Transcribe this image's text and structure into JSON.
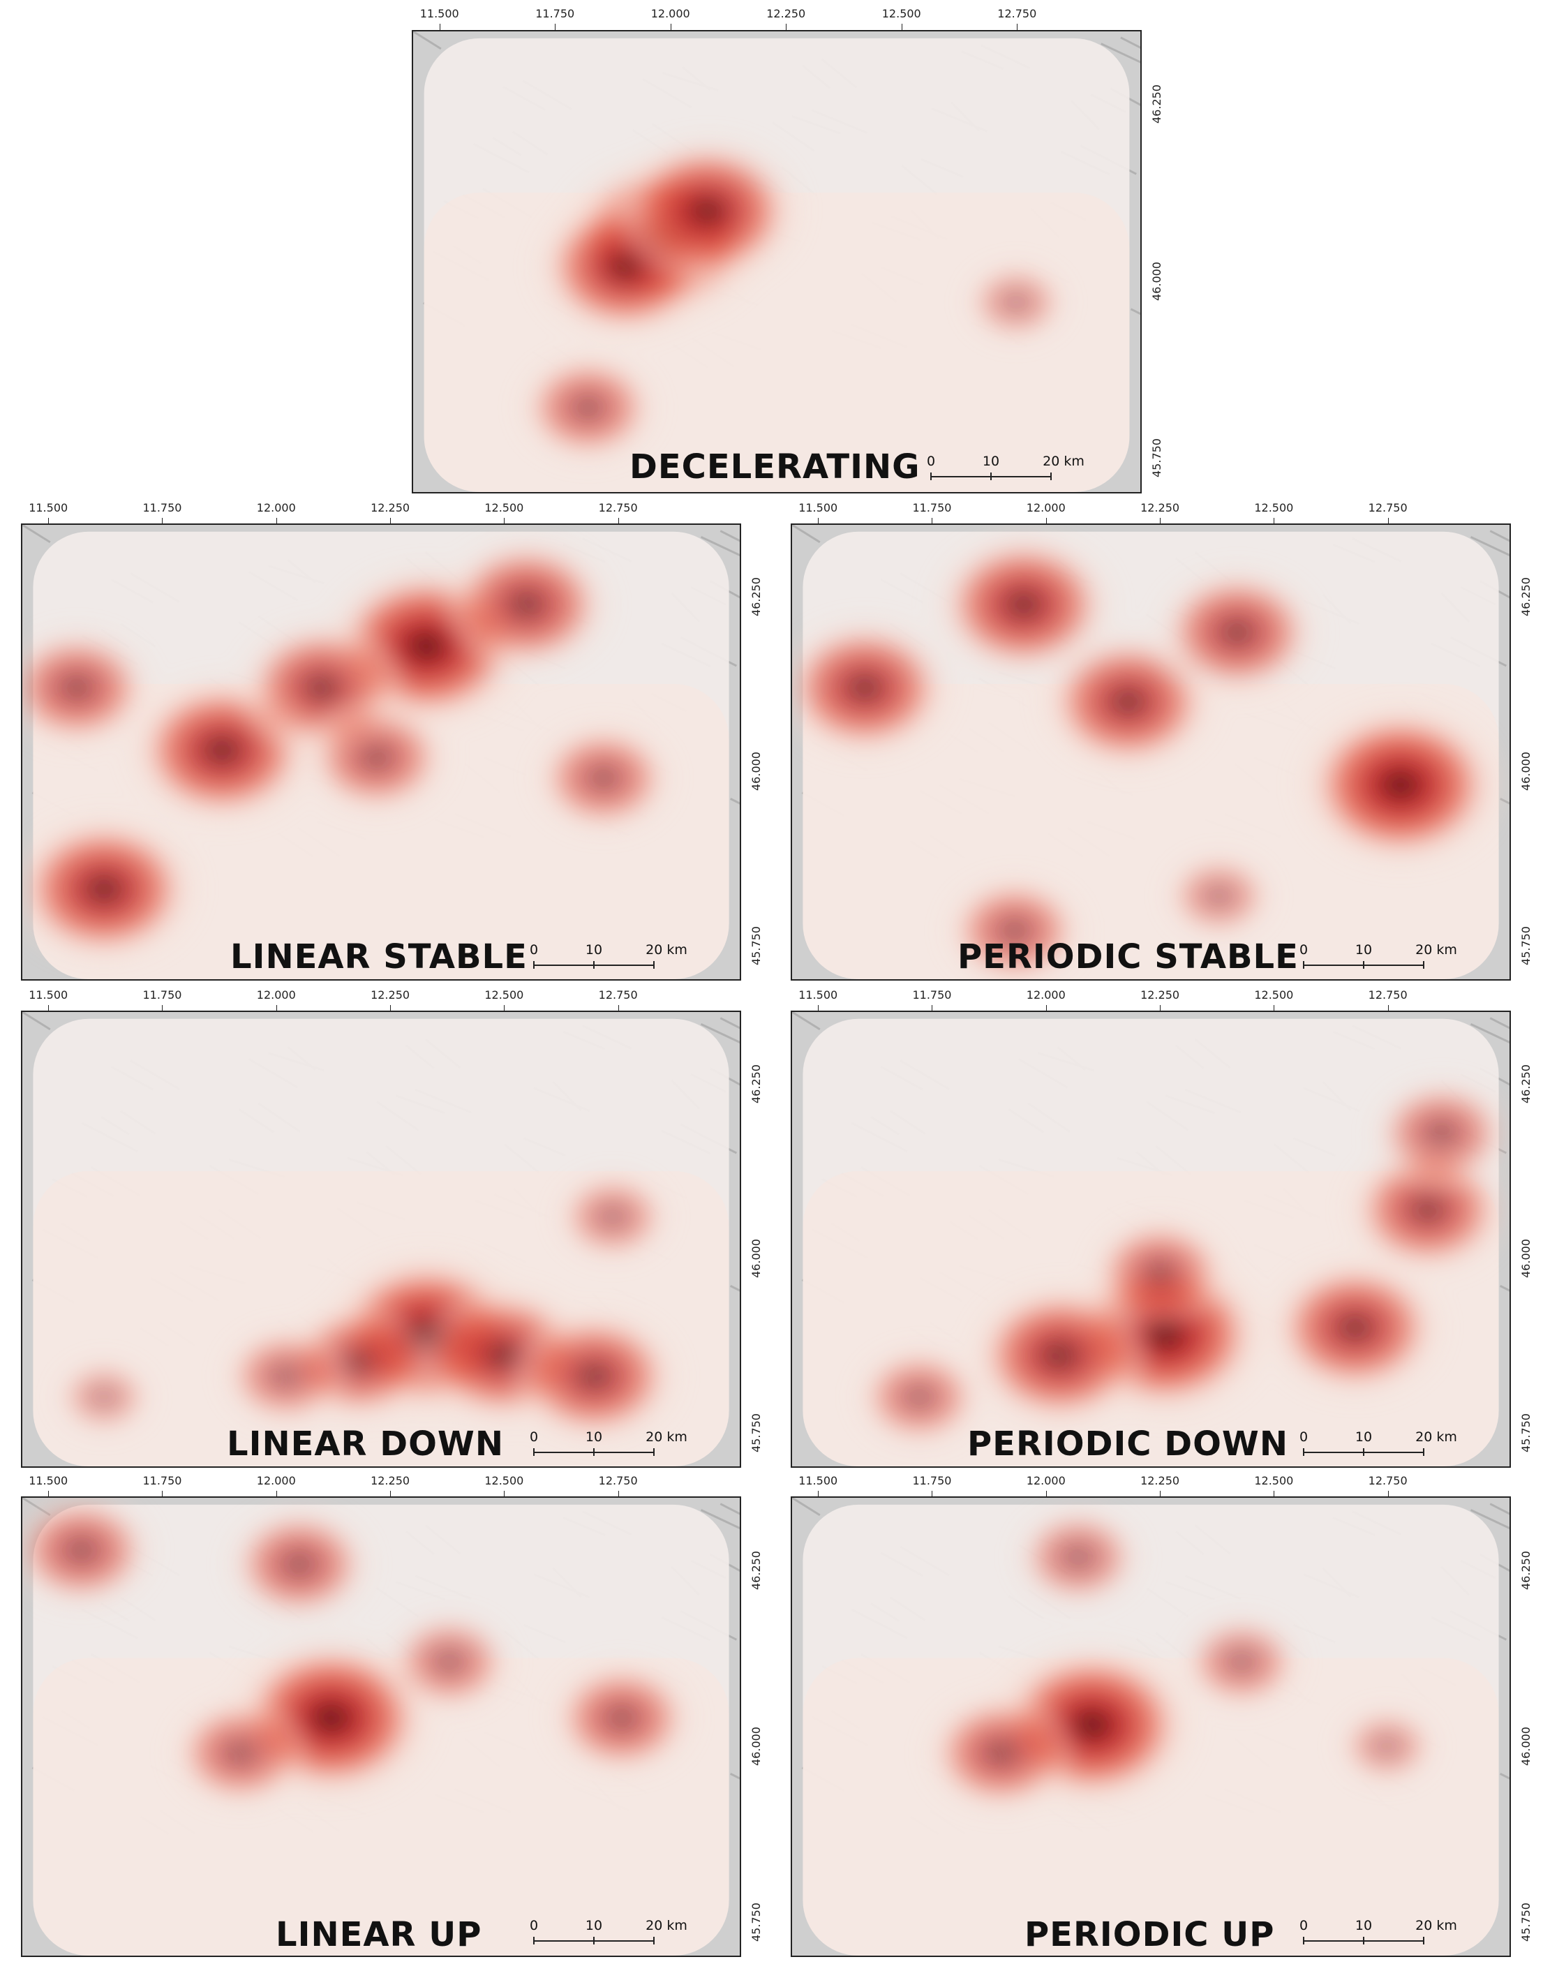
{
  "x_tick_labels": [
    "11.500",
    "11.750",
    "12.000",
    "12.250",
    "12.500",
    "12.750"
  ],
  "y_tick_labels": [
    "46.250",
    "46.000",
    "45.750"
  ],
  "scale_bar": {
    "labels": [
      "0",
      "10",
      "20 km"
    ]
  },
  "colors": {
    "hot_low": "#f7d9cf",
    "hot_mid": "#e8604a",
    "hot_high": "#c0282a",
    "hot_peak": "#5a1416",
    "basemap": "#ececec",
    "border": "#222222"
  },
  "panels": [
    {
      "id": "decelerating",
      "title": "DECELERATING",
      "hotspots": [
        {
          "lon": 11.98,
          "lat": 46.06,
          "intensity": 1.0
        },
        {
          "lon": 11.9,
          "lat": 46.02,
          "intensity": 0.8
        },
        {
          "lon": 12.08,
          "lat": 46.1,
          "intensity": 0.85
        },
        {
          "lon": 11.82,
          "lat": 45.82,
          "intensity": 0.45
        },
        {
          "lon": 12.75,
          "lat": 45.97,
          "intensity": 0.15
        }
      ]
    },
    {
      "id": "linear-stable",
      "title": "LINEAR STABLE",
      "hotspots": [
        {
          "lon": 12.33,
          "lat": 46.18,
          "intensity": 1.0
        },
        {
          "lon": 11.88,
          "lat": 46.03,
          "intensity": 0.85
        },
        {
          "lon": 11.62,
          "lat": 45.83,
          "intensity": 0.85
        },
        {
          "lon": 12.1,
          "lat": 46.12,
          "intensity": 0.7
        },
        {
          "lon": 12.55,
          "lat": 46.24,
          "intensity": 0.7
        },
        {
          "lon": 11.56,
          "lat": 46.12,
          "intensity": 0.55
        },
        {
          "lon": 12.22,
          "lat": 46.02,
          "intensity": 0.5
        },
        {
          "lon": 12.72,
          "lat": 45.99,
          "intensity": 0.45
        }
      ]
    },
    {
      "id": "periodic-stable",
      "title": "PERIODIC STABLE",
      "hotspots": [
        {
          "lon": 12.78,
          "lat": 45.98,
          "intensity": 1.0
        },
        {
          "lon": 11.95,
          "lat": 46.24,
          "intensity": 0.8
        },
        {
          "lon": 12.18,
          "lat": 46.1,
          "intensity": 0.75
        },
        {
          "lon": 11.6,
          "lat": 46.12,
          "intensity": 0.75
        },
        {
          "lon": 12.42,
          "lat": 46.2,
          "intensity": 0.65
        },
        {
          "lon": 11.93,
          "lat": 45.77,
          "intensity": 0.45
        },
        {
          "lon": 12.38,
          "lat": 45.82,
          "intensity": 0.2
        }
      ]
    },
    {
      "id": "linear-down",
      "title": "LINEAR DOWN",
      "hotspots": [
        {
          "lon": 12.33,
          "lat": 45.89,
          "intensity": 1.0
        },
        {
          "lon": 12.5,
          "lat": 45.86,
          "intensity": 0.75
        },
        {
          "lon": 12.7,
          "lat": 45.83,
          "intensity": 0.7
        },
        {
          "lon": 12.18,
          "lat": 45.85,
          "intensity": 0.55
        },
        {
          "lon": 12.02,
          "lat": 45.83,
          "intensity": 0.35
        },
        {
          "lon": 12.74,
          "lat": 46.06,
          "intensity": 0.25
        },
        {
          "lon": 11.62,
          "lat": 45.8,
          "intensity": 0.1
        }
      ]
    },
    {
      "id": "periodic-down",
      "title": "PERIODIC DOWN",
      "hotspots": [
        {
          "lon": 12.26,
          "lat": 45.89,
          "intensity": 1.0
        },
        {
          "lon": 12.03,
          "lat": 45.86,
          "intensity": 0.8
        },
        {
          "lon": 12.68,
          "lat": 45.9,
          "intensity": 0.75
        },
        {
          "lon": 12.84,
          "lat": 46.07,
          "intensity": 0.65
        },
        {
          "lon": 12.87,
          "lat": 46.18,
          "intensity": 0.45
        },
        {
          "lon": 11.72,
          "lat": 45.8,
          "intensity": 0.35
        },
        {
          "lon": 12.25,
          "lat": 45.98,
          "intensity": 0.45
        }
      ]
    },
    {
      "id": "linear-up",
      "title": "LINEAR UP",
      "hotspots": [
        {
          "lon": 12.12,
          "lat": 46.04,
          "intensity": 1.0
        },
        {
          "lon": 11.92,
          "lat": 45.99,
          "intensity": 0.45
        },
        {
          "lon": 12.05,
          "lat": 46.26,
          "intensity": 0.5
        },
        {
          "lon": 11.57,
          "lat": 46.28,
          "intensity": 0.5
        },
        {
          "lon": 12.38,
          "lat": 46.12,
          "intensity": 0.35
        },
        {
          "lon": 12.76,
          "lat": 46.04,
          "intensity": 0.5
        }
      ]
    },
    {
      "id": "periodic-up",
      "title": "PERIODIC UP",
      "hotspots": [
        {
          "lon": 12.1,
          "lat": 46.03,
          "intensity": 1.0
        },
        {
          "lon": 11.9,
          "lat": 45.99,
          "intensity": 0.55
        },
        {
          "lon": 12.07,
          "lat": 46.27,
          "intensity": 0.35
        },
        {
          "lon": 12.43,
          "lat": 46.12,
          "intensity": 0.3
        },
        {
          "lon": 12.75,
          "lat": 46.0,
          "intensity": 0.12
        }
      ]
    }
  ]
}
